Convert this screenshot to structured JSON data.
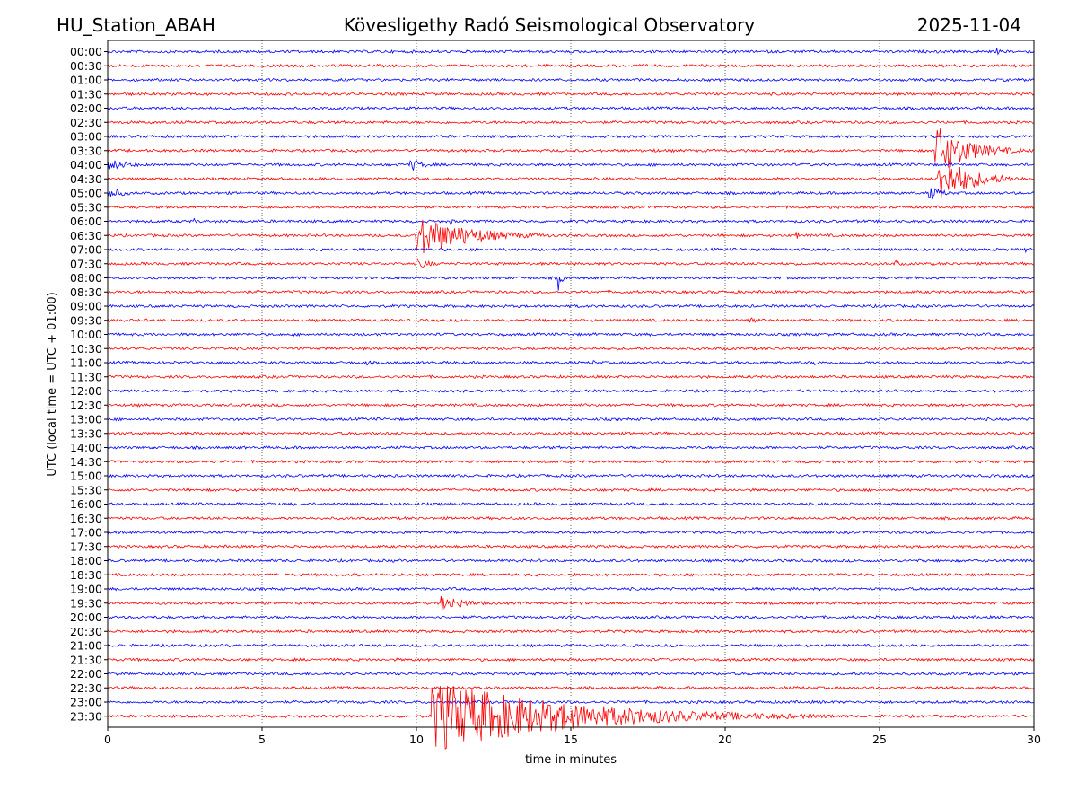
{
  "header": {
    "station": "HU_Station_ABAH",
    "observatory": "Kövesligethy Radó Seismological Observatory",
    "date": "2025-11-04"
  },
  "chart_data": {
    "type": "line",
    "title": "Kövesligethy Radó Seismological Observatory",
    "xlabel": "time in minutes",
    "ylabel": "UTC (local time = UTC + 01:00)",
    "xlim": [
      0,
      30
    ],
    "x_ticks": [
      "0",
      "5",
      "10",
      "15",
      "20",
      "25",
      "30"
    ],
    "grid": "vertical dotted",
    "trace_colors": [
      "#0000ff",
      "#ff0000"
    ],
    "rows": [
      "00:00",
      "00:30",
      "01:00",
      "01:30",
      "02:00",
      "02:30",
      "03:00",
      "03:30",
      "04:00",
      "04:30",
      "05:00",
      "05:30",
      "06:00",
      "06:30",
      "07:00",
      "07:30",
      "08:00",
      "08:30",
      "09:00",
      "09:30",
      "10:00",
      "10:30",
      "11:00",
      "11:30",
      "12:00",
      "12:30",
      "13:00",
      "13:30",
      "14:00",
      "14:30",
      "15:00",
      "15:30",
      "16:00",
      "16:30",
      "17:00",
      "17:30",
      "18:00",
      "18:30",
      "19:00",
      "19:30",
      "20:00",
      "20:30",
      "21:00",
      "21:30",
      "22:00",
      "22:30",
      "23:00",
      "23:30"
    ],
    "events": [
      {
        "row": "03:30",
        "start_min": 26.8,
        "amplitude_rows": 1.9,
        "duration_min": 3.2
      },
      {
        "row": "04:30",
        "start_min": 26.9,
        "amplitude_rows": 1.8,
        "duration_min": 3.1
      },
      {
        "row": "05:00",
        "start_min": 26.6,
        "amplitude_rows": 0.5,
        "duration_min": 1.5
      },
      {
        "row": "04:00",
        "start_min": 0.0,
        "amplitude_rows": 0.45,
        "duration_min": 2.2
      },
      {
        "row": "04:00",
        "start_min": 9.8,
        "amplitude_rows": 0.55,
        "duration_min": 1.2
      },
      {
        "row": "05:00",
        "start_min": 0.0,
        "amplitude_rows": 0.4,
        "duration_min": 1.8
      },
      {
        "row": "03:30",
        "start_min": 17.6,
        "amplitude_rows": 0.25,
        "duration_min": 0.7
      },
      {
        "row": "06:30",
        "start_min": 10.0,
        "amplitude_rows": 1.5,
        "duration_min": 5.0
      },
      {
        "row": "07:30",
        "start_min": 10.0,
        "amplitude_rows": 0.4,
        "duration_min": 1.5
      },
      {
        "row": "08:00",
        "start_min": 14.6,
        "amplitude_rows": 1.1,
        "duration_min": 0.3
      },
      {
        "row": "09:30",
        "start_min": 20.7,
        "amplitude_rows": 0.6,
        "duration_min": 0.7
      },
      {
        "row": "19:30",
        "start_min": 10.8,
        "amplitude_rows": 0.6,
        "duration_min": 2.5
      },
      {
        "row": "23:30",
        "start_min": 10.5,
        "amplitude_rows": 2.6,
        "duration_min": 13.0
      },
      {
        "row": "06:30",
        "start_min": 22.3,
        "amplitude_rows": 0.3,
        "duration_min": 0.4
      },
      {
        "row": "07:30",
        "start_min": 25.5,
        "amplitude_rows": 0.3,
        "duration_min": 0.6
      },
      {
        "row": "07:00",
        "start_min": 29.7,
        "amplitude_rows": 0.3,
        "duration_min": 0.3
      },
      {
        "row": "00:00",
        "start_min": 28.8,
        "amplitude_rows": 0.25,
        "duration_min": 0.5
      },
      {
        "row": "11:00",
        "start_min": 8.4,
        "amplitude_rows": 0.25,
        "duration_min": 0.4
      },
      {
        "row": "11:00",
        "start_min": 15.7,
        "amplitude_rows": 0.25,
        "duration_min": 0.4
      },
      {
        "row": "11:00",
        "start_min": 22.9,
        "amplitude_rows": 0.25,
        "duration_min": 0.4
      },
      {
        "row": "06:00",
        "start_min": 2.8,
        "amplitude_rows": 0.2,
        "duration_min": 0.4
      },
      {
        "row": "06:00",
        "start_min": 11.1,
        "amplitude_rows": 0.25,
        "duration_min": 0.4
      }
    ]
  }
}
